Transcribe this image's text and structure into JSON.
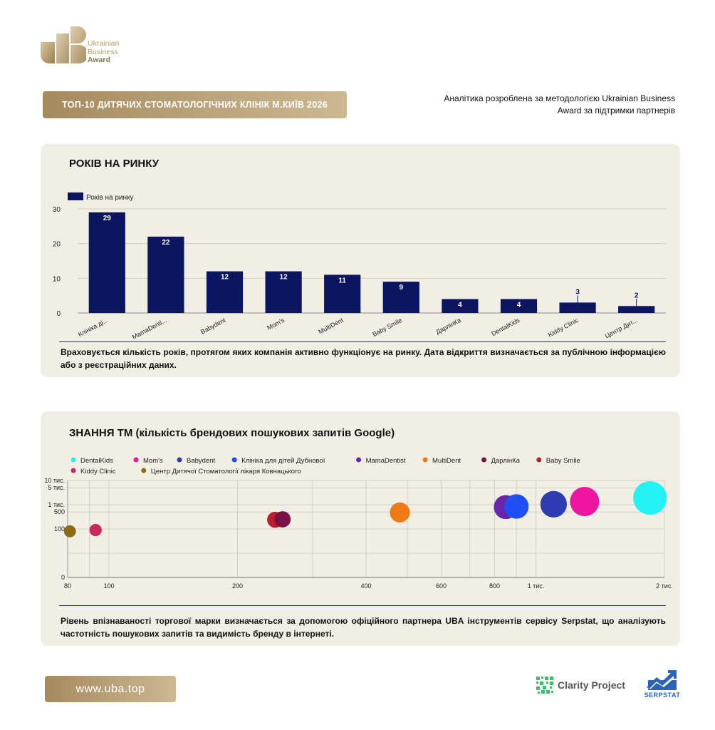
{
  "brand": {
    "line1": "Ukrainian",
    "line2": "Business",
    "line3": "Award"
  },
  "header": {
    "title": "ТОП-10 ДИТЯЧИХ СТОМАТОЛОГІЧНИХ КЛІНІК М.КИЇВ 2026",
    "intro": "Аналітика розроблена за методологією Ukrainian Business Award за підтримки партнерів"
  },
  "section1": {
    "title": "РОКІВ НА РИНКУ",
    "note": "Враховується кількість років, протягом яких компанія активно функціонує на ринку. Дата відкриття визначається за публічною інформацією або з реєстраційних даних."
  },
  "section2": {
    "title": "ЗНАННЯ ТМ (кількість брендових пошукових запитів Google)",
    "note": "Рівень впізнаваності торгової марки визначається за допомогою офіційного партнера UBA інструментів сервісу Serpstat, що аналізують частотність пошукових запитів та видимість бренду в інтернеті."
  },
  "footer": {
    "url": "www.uba.top",
    "partner1": "Clarity Project",
    "partner2": "SERPSTAT"
  },
  "chart_data": [
    {
      "type": "bar",
      "title": "РОКІВ НА РИНКУ",
      "categories": [
        "Клініка ді...",
        "MamaDenti...",
        "Babydent",
        "Mom's",
        "MultiDent",
        "Baby Smile",
        "ДарлінКа",
        "DentalKids",
        "Kiddy Clinic",
        "Центр Дит..."
      ],
      "series": [
        {
          "name": "Років на ринку",
          "values": [
            29,
            22,
            12,
            12,
            11,
            9,
            4,
            4,
            3,
            2
          ],
          "color": "#0b1560"
        }
      ],
      "ylim": [
        0,
        30
      ],
      "yticks": [
        0,
        10,
        20,
        30
      ],
      "grid": true,
      "legend": "top-left"
    },
    {
      "type": "scatter",
      "title": "ЗНАННЯ ТМ (кількість брендових пошукових запитів Google)",
      "x_scale": "log",
      "y_scale": "log",
      "xlim": [
        80,
        2000
      ],
      "ylim": [
        1,
        10000
      ],
      "xticks": [
        {
          "v": 80,
          "label": "80"
        },
        {
          "v": 100,
          "label": "100"
        },
        {
          "v": 200,
          "label": "200"
        },
        {
          "v": 400,
          "label": "400"
        },
        {
          "v": 600,
          "label": "600"
        },
        {
          "v": 800,
          "label": "800"
        },
        {
          "v": 1000,
          "label": "1 тис."
        },
        {
          "v": 2000,
          "label": "2 тис."
        }
      ],
      "yticks": [
        {
          "v": 1,
          "label": "0"
        },
        {
          "v": 100,
          "label": "100"
        },
        {
          "v": 500,
          "label": "500"
        },
        {
          "v": 1000,
          "label": "1 тис."
        },
        {
          "v": 5000,
          "label": "5 тис."
        },
        {
          "v": 10000,
          "label": "10 тис."
        }
      ],
      "series": [
        {
          "name": "DentalKids",
          "color": "#22f2f2",
          "x": 1850,
          "y": 1900,
          "size": 1900
        },
        {
          "name": "Mom's",
          "color": "#ee15a0",
          "x": 1300,
          "y": 1350,
          "size": 1350
        },
        {
          "name": "Babydent",
          "color": "#2e3cb2",
          "x": 1100,
          "y": 1050,
          "size": 1050
        },
        {
          "name": "Клініка для дітей Дубнової",
          "color": "#1f4ef5",
          "x": 900,
          "y": 850,
          "size": 850
        },
        {
          "name": "MamaDentist",
          "color": "#6c24a8",
          "x": 850,
          "y": 800,
          "size": 800
        },
        {
          "name": "MultiDent",
          "color": "#f07a14",
          "x": 480,
          "y": 480,
          "size": 480
        },
        {
          "name": "ДарлінКа",
          "color": "#7a1145",
          "x": 255,
          "y": 250,
          "size": 250
        },
        {
          "name": "Baby Smile",
          "color": "#b81e2b",
          "x": 245,
          "y": 240,
          "size": 240
        },
        {
          "name": "Kiddy Clinic",
          "color": "#c62a5e",
          "x": 93,
          "y": 90,
          "size": 90
        },
        {
          "name": "Центр Дитячої Стоматології лікаря Ковнацького",
          "color": "#8b6b16",
          "x": 81,
          "y": 80,
          "size": 80
        }
      ],
      "legend": "top"
    }
  ]
}
